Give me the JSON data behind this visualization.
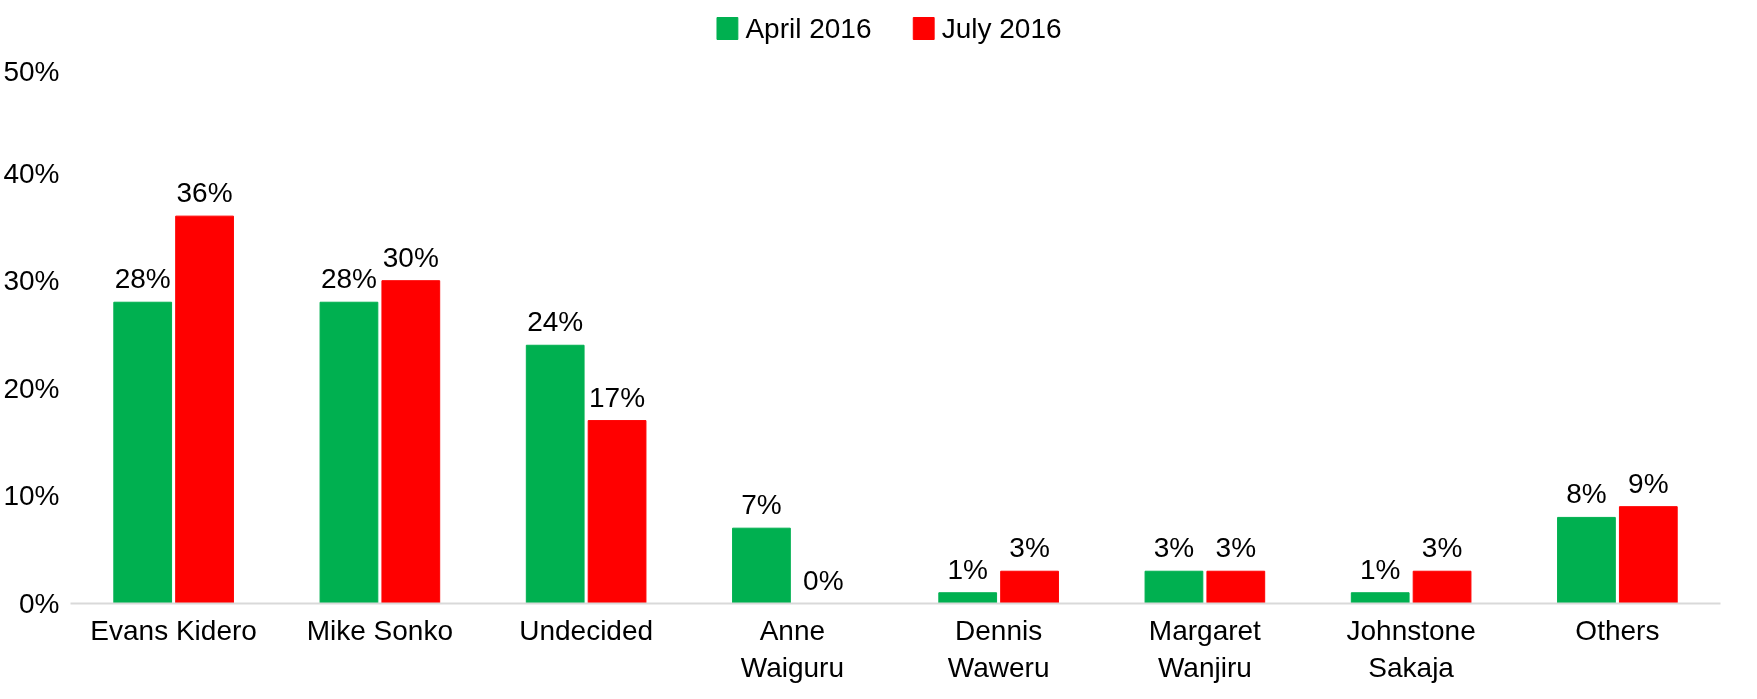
{
  "chart_data": {
    "type": "bar",
    "categories": [
      "Evans Kidero",
      "Mike Sonko",
      "Undecided",
      "Anne\nWaiguru",
      "Dennis\nWaweru",
      "Margaret\nWanjiru",
      "Johnstone\nSakaja",
      "Others"
    ],
    "series": [
      {
        "name": "April 2016",
        "color": "#00b050",
        "values": [
          28,
          28,
          24,
          7,
          1,
          3,
          1,
          8
        ],
        "value_labels": [
          "28%",
          "28%",
          "24%",
          "7%",
          "1%",
          "3%",
          "1%",
          "8%"
        ]
      },
      {
        "name": "July 2016",
        "color": "#ff0000",
        "values": [
          36,
          30,
          17,
          0,
          3,
          3,
          3,
          9
        ],
        "value_labels": [
          "36%",
          "30%",
          "17%",
          "0%",
          "3%",
          "3%",
          "3%",
          "9%"
        ]
      }
    ],
    "ylim": [
      0,
      50
    ],
    "yticks": [
      {
        "value": 0,
        "label": "0%"
      },
      {
        "value": 10,
        "label": "10%"
      },
      {
        "value": 20,
        "label": "20%"
      },
      {
        "value": 30,
        "label": "30%"
      },
      {
        "value": 40,
        "label": "40%"
      },
      {
        "value": 50,
        "label": "50%"
      }
    ],
    "grid": false,
    "legend": "top"
  }
}
